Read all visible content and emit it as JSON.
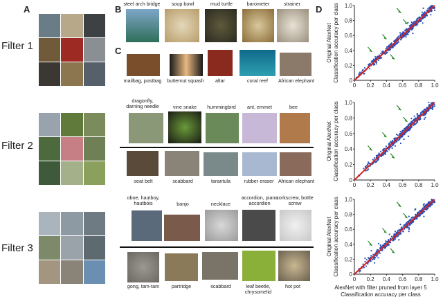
{
  "panels": {
    "A": "A",
    "B": "B",
    "C": "C",
    "D": "D"
  },
  "filters": [
    "Filter 1",
    "Filter 2",
    "Filter 3"
  ],
  "B_labels": [
    "steel arch bridge",
    "soup bowl",
    "mud turtle",
    "barometer",
    "strainer"
  ],
  "C_rows": [
    [
      "mailbag, postbag",
      "butternut squash",
      "altar",
      "coral reef",
      "African elephant"
    ],
    [
      "dragonfly, darning needle",
      "vine snake",
      "hummingbird",
      "ant, emmet",
      "bee"
    ],
    [
      "seat belt",
      "scabbard",
      "tarantula",
      "rubber eraser",
      "African elephant"
    ],
    [
      "oboe, hautboy, hautbois",
      "banjo",
      "necklace",
      "accordion, piano accordion",
      "corkscrew, bottle screw"
    ],
    [
      "gong, tam-tam",
      "partridge",
      "scabbard",
      "leaf beetle, chrysomelid",
      "hot pot"
    ]
  ],
  "chart_data": [
    {
      "type": "scatter",
      "ylabel": [
        "Original AlexNet",
        "Classification accuracy per class"
      ],
      "xticks": [
        "0",
        "0.2",
        "0.4",
        "0.6",
        "0.8",
        "1.0"
      ],
      "yticks": [
        "0",
        "0.2",
        "0.4",
        "0.6",
        "0.8",
        "1.0"
      ],
      "xlim": [
        0,
        1
      ],
      "ylim": [
        0,
        1
      ]
    },
    {
      "type": "scatter",
      "ylabel": [
        "Original AlexNet",
        "Classification accuracy per class"
      ],
      "xticks": [
        "0",
        "0.2",
        "0.4",
        "0.6",
        "0.8",
        "1.0"
      ],
      "yticks": [
        "0",
        "0.2",
        "0.4",
        "0.6",
        "0.8",
        "1.0"
      ],
      "xlim": [
        0,
        1
      ],
      "ylim": [
        0,
        1
      ]
    },
    {
      "type": "scatter",
      "ylabel": [
        "Original AlexNet",
        "Classification accuracy per class"
      ],
      "xticks": [
        "0",
        "0.2",
        "0.4",
        "0.6",
        "0.8",
        "1.0"
      ],
      "yticks": [
        "0",
        "0.2",
        "0.4",
        "0.6",
        "0.8",
        "1.0"
      ],
      "xlim": [
        0,
        1
      ],
      "ylim": [
        0,
        1
      ],
      "xlabel": [
        "AlexNet with filter pruned from layer 5",
        "Classification accuracy per class"
      ]
    }
  ],
  "colors": {
    "points": "#2a4fb5",
    "diagonal": "#d62020",
    "arrows": "#2e8b2e"
  }
}
